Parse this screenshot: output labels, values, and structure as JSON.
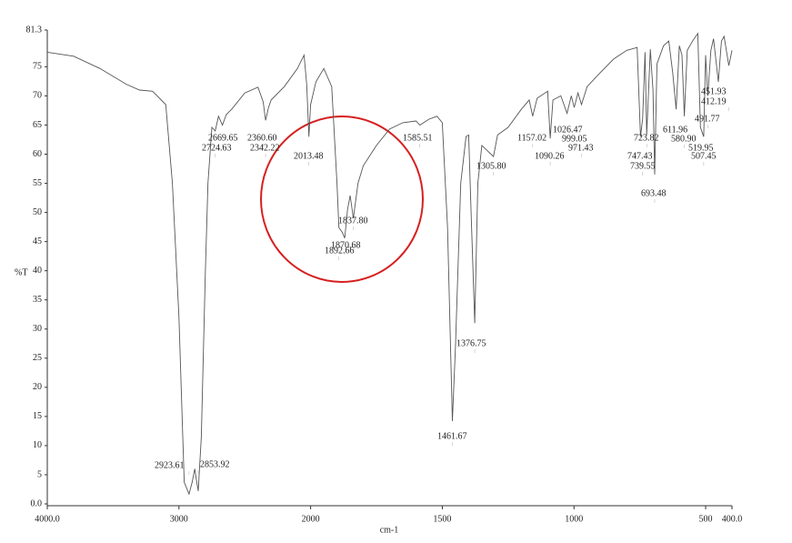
{
  "chart_data": {
    "type": "line",
    "xlabel": "cm-1",
    "ylabel": "%T",
    "color": "#555555",
    "xlim": [
      4000,
      400
    ],
    "xbreak": 2000,
    "xticks": [
      {
        "value": 4000,
        "label": "4000.0"
      },
      3000,
      2000,
      1500,
      1000,
      500,
      {
        "value": 400,
        "label": "400.0"
      }
    ],
    "ylim": [
      0,
      81.3
    ],
    "yticks": [
      {
        "value": 0,
        "label": "0.0"
      },
      5,
      10,
      15,
      20,
      25,
      30,
      35,
      40,
      45,
      50,
      55,
      60,
      65,
      70,
      75,
      81.3
    ],
    "x": [
      4000,
      3800,
      3600,
      3400,
      3300,
      3200,
      3100,
      3050,
      3000,
      2960,
      2923.61,
      2900,
      2880,
      2870,
      2853.92,
      2830,
      2800,
      2780,
      2750,
      2724.63,
      2700,
      2669.65,
      2640,
      2600,
      2500,
      2400,
      2360.6,
      2342.22,
      2320,
      2300,
      2200,
      2100,
      2050,
      2030,
      2013.48,
      2000,
      1980,
      1950,
      1920,
      1900,
      1892.66,
      1880,
      1870.68,
      1860,
      1850,
      1837.8,
      1820,
      1800,
      1750,
      1700,
      1650,
      1600,
      1585.51,
      1550,
      1520,
      1500,
      1480,
      1461.67,
      1450,
      1430,
      1410,
      1400,
      1390,
      1376.75,
      1365,
      1350,
      1305.8,
      1290,
      1250,
      1200,
      1170,
      1157.02,
      1140,
      1100,
      1090.26,
      1080,
      1050,
      1026.47,
      1010,
      999.05,
      985,
      971.43,
      950,
      900,
      850,
      800,
      760,
      747.43,
      739.55,
      730,
      723.82,
      710,
      700,
      693.48,
      685,
      660,
      640,
      625,
      611.96,
      600,
      590,
      580.9,
      570,
      550,
      530,
      519.95,
      507.45,
      500,
      491.77,
      480,
      470,
      451.93,
      440,
      430,
      412.19,
      400
    ],
    "values": [
      77.5,
      76.8,
      74.7,
      72,
      71,
      70.8,
      68.5,
      55,
      32,
      3.7,
      1.7,
      3.7,
      6,
      4.5,
      2.2,
      11.5,
      39.6,
      55,
      64.6,
      64,
      66.5,
      65,
      66.8,
      67.7,
      70.5,
      71.5,
      69,
      65.8,
      68,
      69.3,
      71.6,
      74.7,
      77,
      72,
      63,
      68.5,
      72.4,
      74.7,
      71.6,
      55,
      47.4,
      46.6,
      45.6,
      50.5,
      52.9,
      49,
      55,
      58,
      61.5,
      64.3,
      65.4,
      65.7,
      65,
      66,
      66.5,
      65.4,
      47.4,
      14.2,
      27,
      55,
      63,
      63.3,
      49,
      31,
      55,
      61.5,
      59.6,
      63.3,
      64.6,
      67.7,
      69.3,
      66.5,
      69.6,
      70.8,
      62.7,
      69.3,
      70,
      67,
      70,
      68,
      70.5,
      68.5,
      71.6,
      74,
      76.3,
      77.8,
      78.3,
      63,
      66,
      77.5,
      63.3,
      78,
      71,
      56.5,
      75.5,
      78.6,
      79.4,
      74,
      67.7,
      78.6,
      77,
      66.5,
      77.8,
      79.4,
      80.7,
      64.6,
      63,
      77,
      70,
      77.8,
      79.8,
      72.4,
      79.4,
      80.2,
      75.2,
      77.8
    ],
    "peak_values": [
      2923.61,
      2853.92,
      2724.63,
      2669.65,
      2360.6,
      2342.22,
      2013.48,
      1892.66,
      1870.68,
      1837.8,
      1585.51,
      1461.67,
      1376.75,
      1305.8,
      1157.02,
      1090.26,
      1026.47,
      999.05,
      971.43,
      747.43,
      739.55,
      723.82,
      693.48,
      611.96,
      580.9,
      519.95,
      507.45,
      491.77,
      451.93,
      412.19
    ],
    "peak_labels": [
      "2923.61",
      "2853.92",
      "2724.63",
      "2669.65",
      "2360.60",
      "2342.22",
      "2013.48",
      "1892.66",
      "1870.68",
      "1837.80",
      "1585.51",
      "1461.67",
      "1376.75",
      "1305.80",
      "1157.02",
      "1090.26",
      "1026.47",
      "999.05",
      "971.43",
      "747.43",
      "739.55",
      "723.82",
      "693.48",
      "611.96",
      "580.90",
      "519.95",
      "507.45",
      "491.77",
      "451.93",
      "412.19"
    ]
  }
}
